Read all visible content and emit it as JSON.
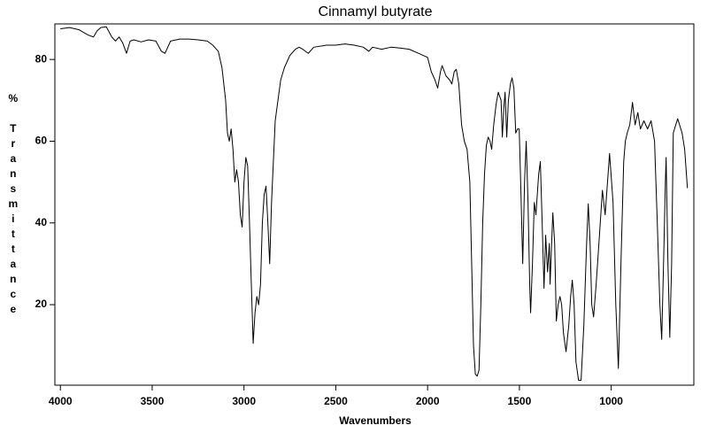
{
  "chart_data": {
    "type": "line",
    "title": "Cinnamyl butyrate",
    "x_label": "Wavenumbers",
    "y_label": "% Transmittance",
    "color": "#000000",
    "x": [
      4000,
      3950,
      3900,
      3850,
      3820,
      3800,
      3780,
      3750,
      3720,
      3700,
      3680,
      3660,
      3640,
      3620,
      3600,
      3560,
      3520,
      3480,
      3450,
      3430,
      3400,
      3350,
      3300,
      3250,
      3200,
      3170,
      3140,
      3120,
      3100,
      3090,
      3080,
      3070,
      3060,
      3050,
      3040,
      3030,
      3020,
      3010,
      3000,
      2990,
      2980,
      2970,
      2960,
      2950,
      2940,
      2930,
      2920,
      2910,
      2900,
      2890,
      2880,
      2870,
      2860,
      2850,
      2830,
      2800,
      2780,
      2750,
      2720,
      2700,
      2680,
      2650,
      2620,
      2550,
      2500,
      2450,
      2400,
      2350,
      2320,
      2300,
      2250,
      2200,
      2150,
      2100,
      2050,
      2000,
      1980,
      1960,
      1945,
      1930,
      1921,
      1900,
      1880,
      1868,
      1855,
      1844,
      1830,
      1815,
      1800,
      1785,
      1770,
      1760,
      1750,
      1740,
      1730,
      1720,
      1710,
      1700,
      1690,
      1680,
      1670,
      1660,
      1651,
      1640,
      1627,
      1615,
      1600,
      1593,
      1585,
      1578,
      1569,
      1560,
      1549,
      1540,
      1530,
      1520,
      1510,
      1501,
      1492,
      1482,
      1472,
      1463,
      1453,
      1444,
      1439,
      1429,
      1419,
      1410,
      1395,
      1386,
      1376,
      1366,
      1357,
      1347,
      1337,
      1333,
      1318,
      1308,
      1299,
      1289,
      1279,
      1270,
      1260,
      1246,
      1231,
      1221,
      1212,
      1202,
      1192,
      1178,
      1164,
      1149,
      1134,
      1125,
      1115,
      1106,
      1096,
      1082,
      1067,
      1048,
      1033,
      1009,
      990,
      975,
      961,
      947,
      932,
      923,
      913,
      899,
      884,
      870,
      855,
      841,
      822,
      802,
      783,
      764,
      749,
      735,
      725,
      715,
      705,
      701,
      691,
      681,
      671,
      662,
      638,
      614,
      600,
      585
    ],
    "values": [
      87.5,
      87.8,
      87.3,
      86,
      85.5,
      87,
      87.8,
      88,
      85.5,
      84.5,
      85.5,
      84,
      81.5,
      84.5,
      84.8,
      84.3,
      84.8,
      84.5,
      82,
      81.5,
      84.5,
      85,
      85,
      84.8,
      84.5,
      83.5,
      82,
      78,
      70,
      62,
      60,
      63,
      58,
      50,
      53,
      50,
      42,
      39,
      50,
      56,
      54,
      40,
      25,
      10.5,
      18,
      22,
      20,
      25,
      40,
      47,
      49,
      40,
      30,
      45,
      65,
      75,
      78,
      81,
      82.5,
      83,
      82.5,
      81.5,
      83,
      83.5,
      83.5,
      83.8,
      83.5,
      83,
      82,
      83,
      82.5,
      83,
      82.8,
      82.5,
      81.5,
      80.5,
      77,
      75,
      73,
      77,
      78.5,
      76,
      75,
      74,
      77,
      77.6,
      74,
      64,
      60,
      58,
      50,
      30,
      10,
      3,
      2.5,
      4,
      20,
      40,
      52,
      59,
      61,
      60,
      58,
      64,
      69,
      72,
      70,
      61,
      68,
      72,
      61,
      70,
      74,
      75.5,
      73,
      62,
      63,
      63,
      48,
      30,
      50,
      60,
      45,
      25,
      18,
      30,
      45,
      42,
      52,
      55,
      40,
      24,
      37,
      28,
      35,
      25,
      42.5,
      35,
      16,
      20,
      22,
      20,
      13,
      8.5,
      15,
      22,
      26,
      20,
      6,
      1.5,
      1.5,
      15,
      35,
      44.7,
      35,
      20,
      17,
      25,
      35,
      48,
      42,
      57,
      45,
      20,
      4.4,
      30,
      55,
      60,
      62,
      64,
      69.5,
      64,
      67,
      63,
      65,
      63,
      65,
      60,
      40,
      20,
      11.5,
      30,
      50,
      56,
      30,
      12,
      30,
      62,
      65.5,
      62,
      58,
      48.5
    ],
    "xlim": [
      4030,
      550
    ],
    "ylim": [
      0.3,
      88.7
    ],
    "xticks": [
      4000,
      3500,
      3000,
      2500,
      2000,
      1500,
      1000
    ],
    "yticks": [
      20,
      40,
      60,
      80
    ]
  }
}
